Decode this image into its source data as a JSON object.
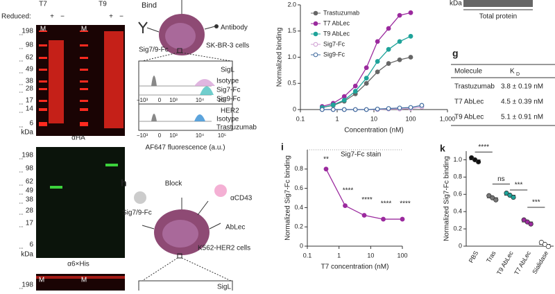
{
  "gel_panels": [
    {
      "lanes": [
        "T7",
        "T9"
      ],
      "reduced_label": "Reduced:",
      "reduced_signs": [
        "+",
        "−",
        "+",
        "−"
      ],
      "marker_lane": [
        "M",
        "M"
      ],
      "markers": [
        "198",
        "98",
        "62",
        "49",
        "38",
        "28",
        "17",
        "14",
        "6"
      ],
      "unit": "kDa",
      "caption": "αHA"
    },
    {
      "markers": [
        "198",
        "98",
        "62",
        "49",
        "38",
        "28",
        "17",
        "6"
      ],
      "unit": "kDa",
      "caption": "α6×His"
    },
    {
      "marker_lane": [
        "M",
        "M"
      ],
      "markers": [
        "198"
      ]
    }
  ],
  "blot_corner": {
    "unit": "kDa",
    "caption": "Total protein"
  },
  "bind_diagram": {
    "title": "Bind",
    "receptor": "Sig7/9-Fc",
    "antibody": "Antibody",
    "cells": "SK-BR-3 cells",
    "histogram_labels": [
      "SigL",
      "Isotype",
      "Sig7-Fc",
      "Sig9-Fc",
      "HER2",
      "Isotype",
      "Trastuzumab"
    ],
    "axis_ticks": [
      "−10³",
      "0",
      "10³",
      "10⁴",
      "10⁵"
    ],
    "axis_ticks_lower": [
      "−10³",
      "0",
      "10³",
      "10⁴",
      "10⁵"
    ],
    "axis_label": "AF647 fluorescence (a.u.)"
  },
  "block_diagram": {
    "panel": "h",
    "title": "Block",
    "receptor": "Sig7/9-Fc",
    "blocker": "αCD43",
    "ablec": "AbLec",
    "cells": "K562-HER2 cells",
    "histogram_label": "SigL"
  },
  "table_g": {
    "panel": "g",
    "header": [
      "Molecule",
      "K",
      "D"
    ],
    "rows": [
      [
        "Trastuzumab",
        "3.8 ± 0.19 nM"
      ],
      [
        "T7 AbLec",
        "4.5 ± 0.39 nM"
      ],
      [
        "T9 AbLec",
        "5.1 ± 0.91 nM"
      ]
    ]
  },
  "chart_data": [
    {
      "type": "line",
      "xscale": "log",
      "x_label": "Concentration (nM)",
      "y_label": "Normalized binding",
      "x": [
        0.39,
        0.78,
        1.56,
        3.13,
        6.25,
        12.5,
        25,
        50,
        100,
        200
      ],
      "series": [
        {
          "name": "Trastuzumab",
          "color": "#666666",
          "marker": "filled",
          "values": [
            0.04,
            0.08,
            0.16,
            0.3,
            0.5,
            0.72,
            0.88,
            0.95,
            1.0,
            null
          ]
        },
        {
          "name": "T7 AbLec",
          "color": "#9b2a9e",
          "marker": "filled",
          "values": [
            0.06,
            0.12,
            0.25,
            0.45,
            0.8,
            1.3,
            1.55,
            1.8,
            1.85,
            null
          ]
        },
        {
          "name": "T9 AbLec",
          "color": "#1fa39a",
          "marker": "filled",
          "values": [
            0.04,
            0.09,
            0.18,
            0.35,
            0.6,
            0.92,
            1.15,
            1.3,
            1.4,
            null
          ]
        },
        {
          "name": "Sig7-Fc",
          "color": "#cf9fd2",
          "marker": "open",
          "values": [
            0.0,
            0.0,
            0.0,
            0.0,
            0.0,
            0.0,
            0.01,
            0.01,
            0.02,
            0.05
          ]
        },
        {
          "name": "Sig9-Fc",
          "color": "#3e6a9e",
          "marker": "open",
          "values": [
            0.0,
            0.0,
            0.0,
            0.0,
            0.0,
            0.01,
            0.02,
            0.03,
            0.04,
            0.08
          ]
        }
      ],
      "xlim": [
        0.1,
        1000
      ],
      "xticks": [
        0.1,
        1,
        10,
        100,
        {
          "value": 1000,
          "label": "1,000"
        }
      ],
      "ylim": [
        0,
        2
      ],
      "yticks": [
        0,
        0.5,
        {
          "value": 1,
          "label": "1.0"
        },
        1.5,
        {
          "value": 2,
          "label": "2.0"
        }
      ],
      "legend": "upper left"
    },
    {
      "type": "line",
      "panel": "i",
      "xscale": "log",
      "title": "Sig7-Fc stain",
      "x_label": "T7 concentration (nM)",
      "y_label": "Normalized Sig7-Fc binding",
      "x": [
        0.39,
        1.56,
        6.25,
        25,
        100
      ],
      "series": [
        {
          "name": null,
          "color": "#9b2a9e",
          "marker": "filled",
          "values": [
            0.8,
            0.42,
            0.32,
            0.28,
            0.28
          ]
        }
      ],
      "annotations": [
        "**",
        "****",
        "****",
        "****",
        "****"
      ],
      "xlim": [
        0.1,
        100
      ],
      "xticks": [
        0.1,
        1,
        10,
        100
      ],
      "ylim": [
        0,
        1
      ],
      "yticks": [
        0,
        0.2,
        0.4,
        0.6,
        0.8
      ]
    },
    {
      "type": "dot",
      "panel": "k",
      "y_label": "Normalized Sig7-Fc binding",
      "categories": [
        "PBS",
        "Tras",
        "T9 AbLec",
        "T7 AbLec",
        "Sialidase"
      ],
      "values": [
        1.0,
        0.56,
        0.59,
        0.28,
        0.02
      ],
      "colors": [
        "#111111",
        "#777777",
        "#1fa39a",
        "#9b2a9e",
        "#ffffff"
      ],
      "significance": [
        "****",
        "ns",
        "***",
        "***"
      ],
      "ylim": [
        0,
        1.1
      ],
      "yticks": [
        0,
        0.2,
        0.4,
        0.6,
        0.8,
        {
          "value": 1,
          "label": "1.0"
        }
      ]
    }
  ]
}
